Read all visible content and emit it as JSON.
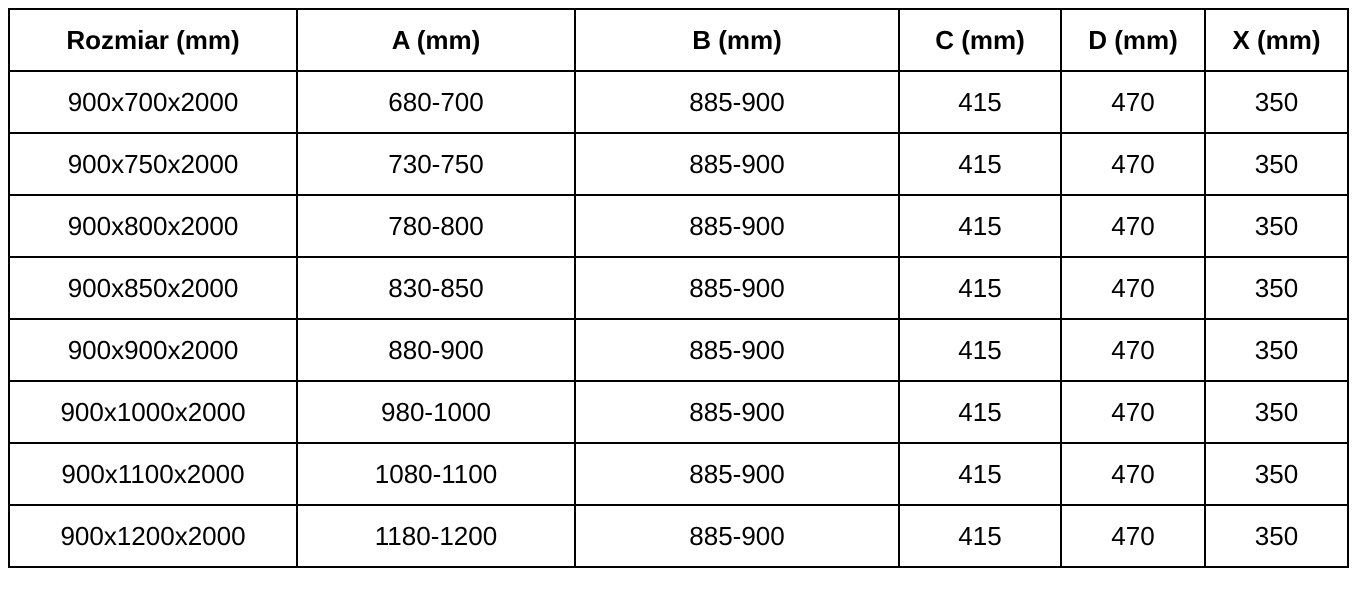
{
  "headers": [
    "Rozmiar (mm)",
    "A (mm)",
    "B (mm)",
    "C (mm)",
    "D (mm)",
    "X (mm)"
  ],
  "rows": [
    [
      "900x700x2000",
      "680-700",
      "885-900",
      "415",
      "470",
      "350"
    ],
    [
      "900x750x2000",
      "730-750",
      "885-900",
      "415",
      "470",
      "350"
    ],
    [
      "900x800x2000",
      "780-800",
      "885-900",
      "415",
      "470",
      "350"
    ],
    [
      "900x850x2000",
      "830-850",
      "885-900",
      "415",
      "470",
      "350"
    ],
    [
      "900x900x2000",
      "880-900",
      "885-900",
      "415",
      "470",
      "350"
    ],
    [
      "900x1000x2000",
      "980-1000",
      "885-900",
      "415",
      "470",
      "350"
    ],
    [
      "900x1100x2000",
      "1080-1100",
      "885-900",
      "415",
      "470",
      "350"
    ],
    [
      "900x1200x2000",
      "1180-1200",
      "885-900",
      "415",
      "470",
      "350"
    ]
  ]
}
